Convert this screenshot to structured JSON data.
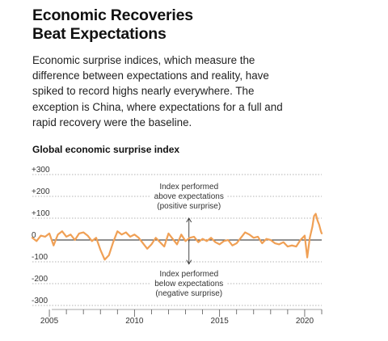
{
  "headline": {
    "line1": "Economic Recoveries",
    "line2": "Beat Expectations"
  },
  "dek": "Economic surprise indices, which measure the difference between expectations and reality, have spiked to record highs nearly everywhere. The exception is China, where expectations for a full and rapid recovery were the baseline.",
  "chart_data": {
    "type": "line",
    "title": "Global economic surprise index",
    "xlabel": "",
    "ylabel": "",
    "xlim": [
      2004.0,
      2021.0
    ],
    "ylim": [
      -300,
      300
    ],
    "y_ticks": [
      300,
      200,
      100,
      0,
      -100,
      -200,
      -300
    ],
    "y_tick_labels": [
      "+300",
      "+200",
      "+100",
      "0",
      "-100",
      "-200",
      "-300"
    ],
    "x_tick_labels": [
      {
        "year": 2005,
        "label": "2005"
      },
      {
        "year": 2010,
        "label": "2010"
      },
      {
        "year": 2015,
        "label": "2015"
      },
      {
        "year": 2020,
        "label": "2020"
      }
    ],
    "grid": "dotted horizontal",
    "colors": {
      "line": "#f0a055",
      "zero_line": "#222222",
      "grid": "#9a9a9a",
      "annotation": "#333333"
    },
    "annotations": {
      "above": [
        "Index performed",
        "above expectations",
        "(positive surprise)"
      ],
      "below": [
        "Index performed",
        "below expectations",
        "(negative surprise)"
      ]
    },
    "series": [
      {
        "x": [
          2004.0,
          2004.25,
          2004.5,
          2004.75,
          2005.0,
          2005.25,
          2005.5,
          2005.75,
          2006.0,
          2006.25,
          2006.5,
          2006.75,
          2007.0,
          2007.25,
          2007.5,
          2007.75,
          2008.0,
          2008.25,
          2008.5,
          2008.75,
          2009.0,
          2009.25,
          2009.5,
          2009.75,
          2010.0,
          2010.25,
          2010.5,
          2010.75,
          2011.0,
          2011.25,
          2011.5,
          2011.75,
          2012.0,
          2012.25,
          2012.5,
          2012.75,
          2013.0,
          2013.25,
          2013.5,
          2013.75,
          2014.0,
          2014.25,
          2014.5,
          2014.75,
          2015.0,
          2015.25,
          2015.5,
          2015.75,
          2016.0,
          2016.25,
          2016.5,
          2016.75,
          2017.0,
          2017.25,
          2017.5,
          2017.75,
          2018.0,
          2018.25,
          2018.5,
          2018.75,
          2019.0,
          2019.25,
          2019.5,
          2019.75,
          2020.0,
          2020.15,
          2020.3,
          2020.45,
          2020.55,
          2020.65,
          2020.75,
          2020.85,
          2020.95,
          2021.0
        ],
        "values": [
          10,
          -5,
          20,
          15,
          30,
          -25,
          25,
          40,
          15,
          25,
          0,
          30,
          35,
          20,
          -5,
          10,
          -45,
          -90,
          -70,
          -10,
          40,
          25,
          35,
          15,
          25,
          10,
          -15,
          -40,
          -20,
          10,
          -10,
          -30,
          30,
          5,
          -20,
          25,
          -5,
          10,
          15,
          -10,
          5,
          -5,
          10,
          -10,
          -20,
          -5,
          0,
          -25,
          -15,
          10,
          35,
          25,
          10,
          15,
          -15,
          5,
          0,
          -15,
          -20,
          -10,
          -30,
          -25,
          -30,
          0,
          20,
          -80,
          10,
          60,
          110,
          120,
          90,
          70,
          40,
          30
        ]
      }
    ]
  }
}
